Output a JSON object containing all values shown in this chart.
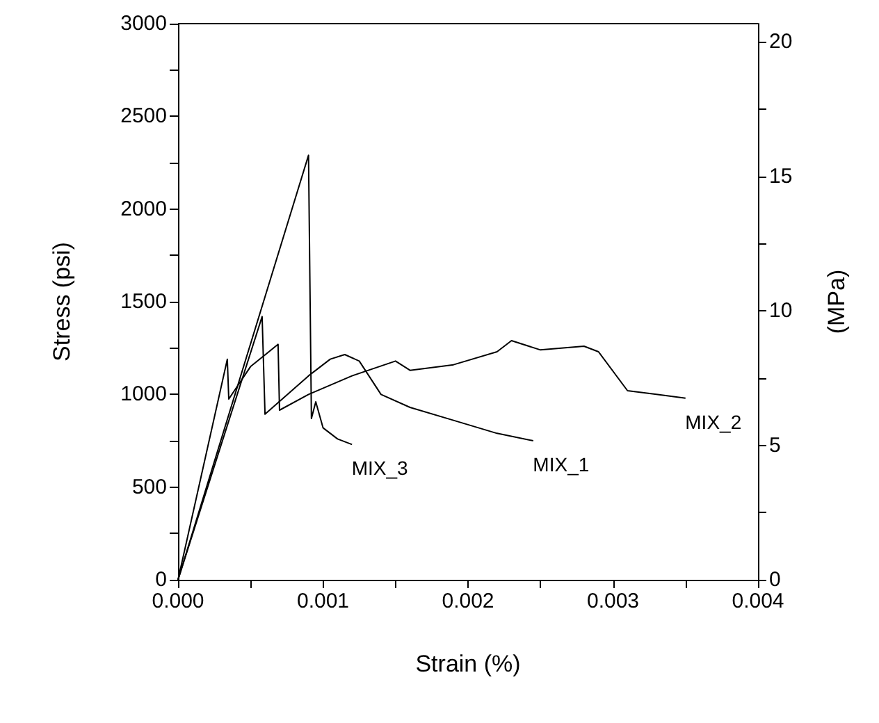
{
  "chart_data": {
    "type": "line",
    "xlabel": "Strain (%)",
    "ylabel": "Stress (psi)",
    "y2label": "(MPa)",
    "xlim": [
      0,
      0.004
    ],
    "xticks": [
      {
        "value": 0,
        "label": "0.000"
      },
      {
        "value": 0.0005,
        "label": null
      },
      {
        "value": 0.001,
        "label": "0.001"
      },
      {
        "value": 0.0015,
        "label": null
      },
      {
        "value": 0.002,
        "label": "0.002"
      },
      {
        "value": 0.0025,
        "label": null
      },
      {
        "value": 0.003,
        "label": "0.003"
      },
      {
        "value": 0.0035,
        "label": null
      },
      {
        "value": 0.004,
        "label": "0.004"
      }
    ],
    "ylim": [
      0,
      3000
    ],
    "yticks": [
      0,
      {
        "value": 250,
        "label": null
      },
      500,
      {
        "value": 750,
        "label": null
      },
      1000,
      {
        "value": 1250,
        "label": null
      },
      1500,
      {
        "value": 1750,
        "label": null
      },
      2000,
      {
        "value": 2250,
        "label": null
      },
      2500,
      {
        "value": 2750,
        "label": null
      },
      3000
    ],
    "y2lim": [
      0,
      20.684
    ],
    "y2ticks": [
      0,
      {
        "value": 2.5,
        "label": null
      },
      5,
      {
        "value": 7.5,
        "label": null
      },
      10,
      {
        "value": 12.5,
        "label": null
      },
      15,
      {
        "value": 17.5,
        "label": null
      },
      20
    ],
    "grid": false,
    "marker": "none",
    "line_style": "solid",
    "series": [
      {
        "name": "MIX_1",
        "color": "#000000",
        "x": [
          0,
          0.00058,
          0.0006,
          0.0009,
          0.00105,
          0.00115,
          0.00125,
          0.0014,
          0.0016,
          0.0019,
          0.0022,
          0.00245
        ],
        "values": [
          0,
          1420,
          893,
          1100,
          1190,
          1215,
          1180,
          1000,
          930,
          860,
          790,
          750
        ]
      },
      {
        "name": "MIX_2",
        "color": "#000000",
        "x": [
          0,
          0.00034,
          0.00035,
          0.0005,
          0.00069,
          0.0007,
          0.0009,
          0.0012,
          0.0015,
          0.0016,
          0.0019,
          0.0022,
          0.0023,
          0.0025,
          0.0028,
          0.0029,
          0.0031,
          0.0033,
          0.0035
        ],
        "values": [
          0,
          1190,
          975,
          1150,
          1270,
          915,
          1000,
          1100,
          1180,
          1130,
          1160,
          1230,
          1290,
          1240,
          1260,
          1230,
          1020,
          1000,
          980
        ]
      },
      {
        "name": "MIX_3",
        "color": "#000000",
        "x": [
          0,
          0.0009,
          0.00092,
          0.00095,
          0.001,
          0.0011,
          0.0012
        ],
        "values": [
          0,
          2290,
          870,
          960,
          820,
          760,
          730
        ]
      }
    ]
  }
}
